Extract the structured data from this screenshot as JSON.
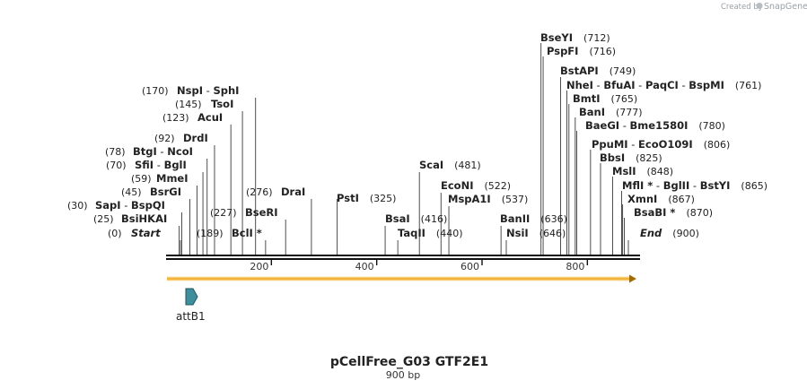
{
  "credit": {
    "prefix": "Created by",
    "product": "SnapGene"
  },
  "map": {
    "name": "pCellFree_G03 GTF2E1",
    "length_label": "900 bp",
    "length_bp": 900,
    "ticks": [
      {
        "pos": 200,
        "label": "200"
      },
      {
        "pos": 400,
        "label": "400"
      },
      {
        "pos": 600,
        "label": "600"
      },
      {
        "pos": 800,
        "label": "800"
      }
    ],
    "sites": [
      {
        "site": 0,
        "pos": "(0)",
        "names": [
          "Start"
        ],
        "italic": true
      },
      {
        "site": 25,
        "pos": "(25)",
        "names": [
          "BsiHKAI"
        ]
      },
      {
        "site": 30,
        "pos": "(30)",
        "names": [
          "SapI",
          "BspQI"
        ]
      },
      {
        "site": 45,
        "pos": "(45)",
        "names": [
          "BsrGI"
        ]
      },
      {
        "site": 59,
        "pos": "(59)",
        "names": [
          "MmeI"
        ]
      },
      {
        "site": 70,
        "pos": "(70)",
        "names": [
          "SfiI",
          "BglI"
        ]
      },
      {
        "site": 78,
        "pos": "(78)",
        "names": [
          "BtgI",
          "NcoI"
        ]
      },
      {
        "site": 92,
        "pos": "(92)",
        "names": [
          "DrdI"
        ]
      },
      {
        "site": 123,
        "pos": "(123)",
        "names": [
          "AcuI"
        ]
      },
      {
        "site": 145,
        "pos": "(145)",
        "names": [
          "TsoI"
        ]
      },
      {
        "site": 170,
        "pos": "(170)",
        "names": [
          "NspI",
          "SphI"
        ]
      },
      {
        "site": 189,
        "pos": "(189)",
        "names": [
          "BclI *"
        ]
      },
      {
        "site": 227,
        "pos": "(227)",
        "names": [
          "BseRI"
        ]
      },
      {
        "site": 276,
        "pos": "(276)",
        "names": [
          "DraI"
        ]
      },
      {
        "site": 325,
        "pos": "(325)",
        "names": [
          "PstI"
        ]
      },
      {
        "site": 416,
        "pos": "(416)",
        "names": [
          "BsaI"
        ]
      },
      {
        "site": 440,
        "pos": "(440)",
        "names": [
          "TaqII"
        ]
      },
      {
        "site": 481,
        "pos": "(481)",
        "names": [
          "ScaI"
        ]
      },
      {
        "site": 522,
        "pos": "(522)",
        "names": [
          "EcoNI"
        ]
      },
      {
        "site": 537,
        "pos": "(537)",
        "names": [
          "MspA1I"
        ]
      },
      {
        "site": 636,
        "pos": "(636)",
        "names": [
          "BanII"
        ]
      },
      {
        "site": 646,
        "pos": "(646)",
        "names": [
          "NsiI"
        ]
      },
      {
        "site": 712,
        "pos": "(712)",
        "names": [
          "BseYI"
        ]
      },
      {
        "site": 716,
        "pos": "(716)",
        "names": [
          "PspFI"
        ]
      },
      {
        "site": 749,
        "pos": "(749)",
        "names": [
          "BstAPI"
        ]
      },
      {
        "site": 761,
        "pos": "(761)",
        "names": [
          "NheI",
          "BfuAI",
          "PaqCI",
          "BspMI"
        ]
      },
      {
        "site": 765,
        "pos": "(765)",
        "names": [
          "BmtI"
        ]
      },
      {
        "site": 777,
        "pos": "(777)",
        "names": [
          "BanI"
        ]
      },
      {
        "site": 780,
        "pos": "(780)",
        "names": [
          "BaeGI",
          "Bme1580I"
        ]
      },
      {
        "site": 806,
        "pos": "(806)",
        "names": [
          "PpuMI",
          "EcoO109I"
        ]
      },
      {
        "site": 825,
        "pos": "(825)",
        "names": [
          "BbsI"
        ]
      },
      {
        "site": 848,
        "pos": "(848)",
        "names": [
          "MslI"
        ]
      },
      {
        "site": 865,
        "pos": "(865)",
        "names": [
          "MflI *",
          "BglII",
          "BstYI"
        ]
      },
      {
        "site": 867,
        "pos": "(867)",
        "names": [
          "XmnI"
        ]
      },
      {
        "site": 870,
        "pos": "(870)",
        "names": [
          "BsaBI *"
        ]
      },
      {
        "site": 900,
        "pos": "(900)",
        "names": [
          "End"
        ],
        "italic": true
      }
    ],
    "features": [
      {
        "name": "attB1",
        "start": 1,
        "end": 25,
        "color": "#3f8e9c"
      }
    ],
    "colors": {
      "orf": "#f2b43c",
      "orf_outline": "#a16a00",
      "backbone": "#111111"
    }
  }
}
